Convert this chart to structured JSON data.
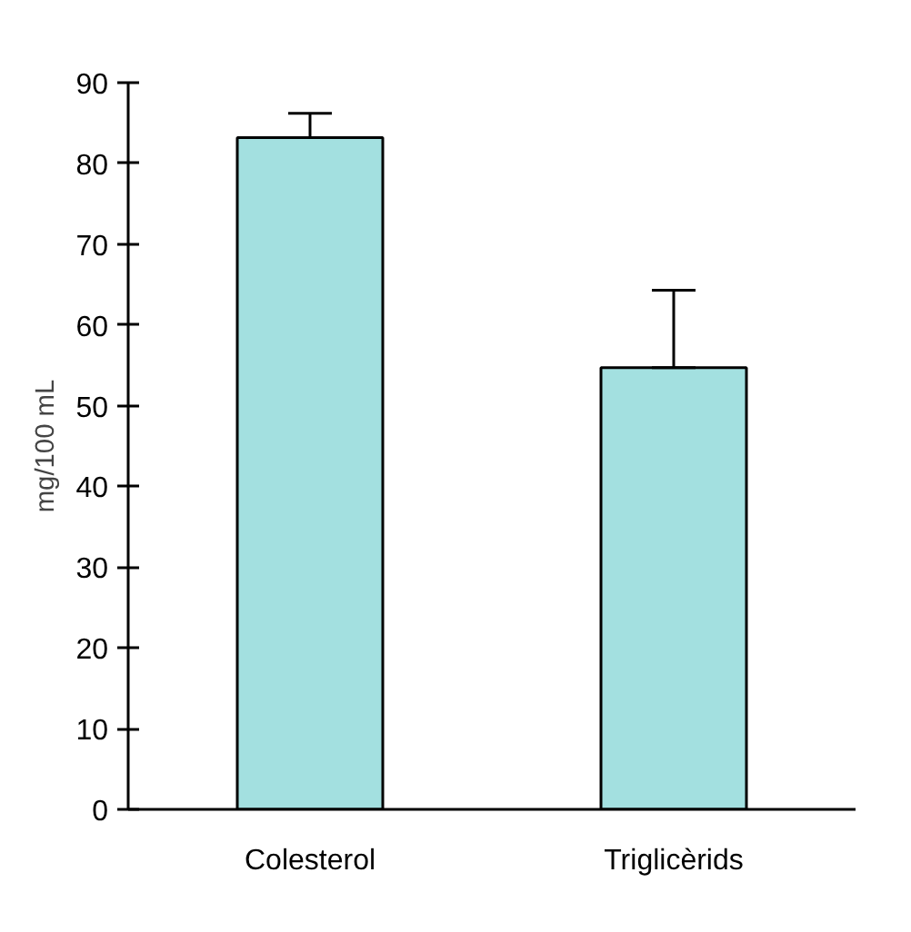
{
  "chart_data": {
    "type": "bar",
    "ylabel": "mg/100 mL",
    "categories": [
      "Colesterol",
      "Triglicèrids"
    ],
    "values": [
      83.2,
      54.7
    ],
    "errors": [
      [
        83.2,
        86.2
      ],
      [
        54.7,
        64.3
      ]
    ],
    "color": "#a3e0e0",
    "ylim": [
      0,
      90
    ],
    "yticks": [
      0,
      10,
      20,
      30,
      40,
      50,
      60,
      70,
      80,
      90
    ],
    "grid": false
  }
}
